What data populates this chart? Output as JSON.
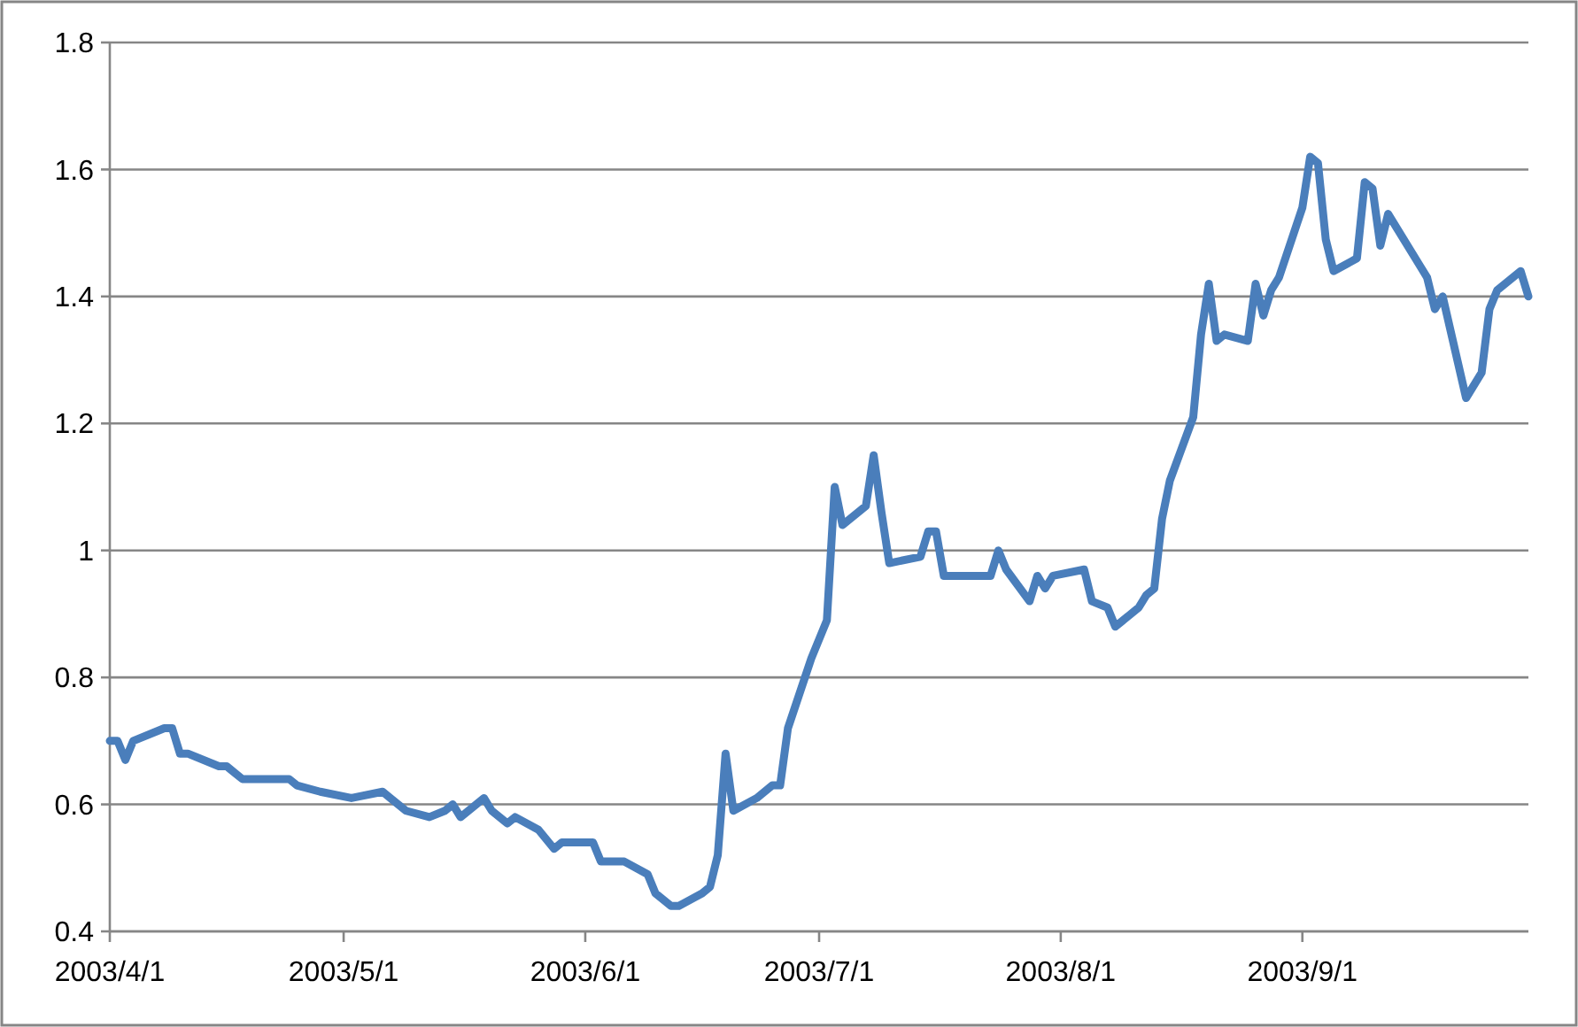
{
  "chart_data": {
    "type": "line",
    "x": [
      "2003-04-01",
      "2003-04-02",
      "2003-04-03",
      "2003-04-04",
      "2003-04-08",
      "2003-04-09",
      "2003-04-10",
      "2003-04-11",
      "2003-04-15",
      "2003-04-16",
      "2003-04-17",
      "2003-04-18",
      "2003-04-21",
      "2003-04-23",
      "2003-04-24",
      "2003-04-25",
      "2003-04-28",
      "2003-05-02",
      "2003-05-06",
      "2003-05-07",
      "2003-05-09",
      "2003-05-12",
      "2003-05-14",
      "2003-05-15",
      "2003-05-16",
      "2003-05-19",
      "2003-05-20",
      "2003-05-22",
      "2003-05-23",
      "2003-05-26",
      "2003-05-28",
      "2003-05-29",
      "2003-06-02",
      "2003-06-03",
      "2003-06-05",
      "2003-06-06",
      "2003-06-09",
      "2003-06-10",
      "2003-06-12",
      "2003-06-13",
      "2003-06-16",
      "2003-06-17",
      "2003-06-18",
      "2003-06-19",
      "2003-06-20",
      "2003-06-23",
      "2003-06-25",
      "2003-06-26",
      "2003-06-27",
      "2003-06-30",
      "2003-07-02",
      "2003-07-03",
      "2003-07-04",
      "2003-07-07",
      "2003-07-08",
      "2003-07-09",
      "2003-07-10",
      "2003-07-14",
      "2003-07-15",
      "2003-07-16",
      "2003-07-17",
      "2003-07-22",
      "2003-07-23",
      "2003-07-24",
      "2003-07-25",
      "2003-07-28",
      "2003-07-29",
      "2003-07-30",
      "2003-07-31",
      "2003-08-04",
      "2003-08-05",
      "2003-08-07",
      "2003-08-08",
      "2003-08-11",
      "2003-08-12",
      "2003-08-13",
      "2003-08-14",
      "2003-08-15",
      "2003-08-18",
      "2003-08-19",
      "2003-08-20",
      "2003-08-21",
      "2003-08-22",
      "2003-08-25",
      "2003-08-26",
      "2003-08-27",
      "2003-08-28",
      "2003-08-29",
      "2003-09-01",
      "2003-09-02",
      "2003-09-03",
      "2003-09-04",
      "2003-09-05",
      "2003-09-08",
      "2003-09-09",
      "2003-09-10",
      "2003-09-11",
      "2003-09-12",
      "2003-09-16",
      "2003-09-17",
      "2003-09-18",
      "2003-09-19",
      "2003-09-22",
      "2003-09-24",
      "2003-09-25",
      "2003-09-26",
      "2003-09-29",
      "2003-09-30"
    ],
    "series": [
      {
        "color": "#4a7ebb",
        "values": [
          0.7,
          0.7,
          0.67,
          0.7,
          0.72,
          0.72,
          0.68,
          0.68,
          0.66,
          0.66,
          0.65,
          0.64,
          0.64,
          0.64,
          0.64,
          0.63,
          0.62,
          0.61,
          0.62,
          0.61,
          0.59,
          0.58,
          0.59,
          0.6,
          0.58,
          0.61,
          0.59,
          0.57,
          0.58,
          0.56,
          0.53,
          0.54,
          0.54,
          0.51,
          0.51,
          0.51,
          0.49,
          0.46,
          0.44,
          0.44,
          0.46,
          0.47,
          0.52,
          0.68,
          0.59,
          0.61,
          0.63,
          0.63,
          0.72,
          0.83,
          0.89,
          1.1,
          1.04,
          1.07,
          1.15,
          1.06,
          0.98,
          0.99,
          1.03,
          1.03,
          0.96,
          0.96,
          0.96,
          1.0,
          0.97,
          0.92,
          0.96,
          0.94,
          0.96,
          0.97,
          0.92,
          0.91,
          0.88,
          0.91,
          0.93,
          0.94,
          1.05,
          1.11,
          1.21,
          1.34,
          1.42,
          1.33,
          1.34,
          1.33,
          1.42,
          1.37,
          1.41,
          1.43,
          1.54,
          1.62,
          1.61,
          1.49,
          1.44,
          1.46,
          1.58,
          1.57,
          1.48,
          1.53,
          1.45,
          1.43,
          1.38,
          1.4,
          1.24,
          1.28,
          1.38,
          1.41,
          1.44,
          1.4
        ]
      }
    ],
    "xlim": [
      "2003-04-01",
      "2003-09-30"
    ],
    "xticks": [
      {
        "value": "2003-04-01",
        "label": "2003/4/1"
      },
      {
        "value": "2003-05-01",
        "label": "2003/5/1"
      },
      {
        "value": "2003-06-01",
        "label": "2003/6/1"
      },
      {
        "value": "2003-07-01",
        "label": "2003/7/1"
      },
      {
        "value": "2003-08-01",
        "label": "2003/8/1"
      },
      {
        "value": "2003-09-01",
        "label": "2003/9/1"
      }
    ],
    "ylim": [
      0.4,
      1.8
    ],
    "yticks": [
      0.4,
      0.6,
      0.8,
      1,
      1.2,
      1.4,
      1.6,
      1.8
    ],
    "grid": "y",
    "marker": "none",
    "line_style": "solid"
  }
}
